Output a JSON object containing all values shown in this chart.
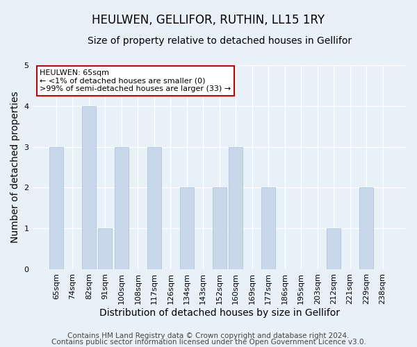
{
  "title": "HEULWEN, GELLIFOR, RUTHIN, LL15 1RY",
  "subtitle": "Size of property relative to detached houses in Gellifor",
  "xlabel": "Distribution of detached houses by size in Gellifor",
  "ylabel": "Number of detached properties",
  "categories": [
    "65sqm",
    "74sqm",
    "82sqm",
    "91sqm",
    "100sqm",
    "108sqm",
    "117sqm",
    "126sqm",
    "134sqm",
    "143sqm",
    "152sqm",
    "160sqm",
    "169sqm",
    "177sqm",
    "186sqm",
    "195sqm",
    "203sqm",
    "212sqm",
    "221sqm",
    "229sqm",
    "238sqm"
  ],
  "values": [
    3,
    0,
    4,
    1,
    3,
    0,
    3,
    0,
    2,
    0,
    2,
    3,
    0,
    2,
    0,
    0,
    0,
    1,
    0,
    2,
    0
  ],
  "bar_color": "#c8d8ea",
  "ylim": [
    0,
    5
  ],
  "yticks": [
    0,
    1,
    2,
    3,
    4,
    5
  ],
  "annotation_title": "HEULWEN: 65sqm",
  "annotation_line1": "← <1% of detached houses are smaller (0)",
  "annotation_line2": ">99% of semi-detached houses are larger (33) →",
  "annotation_box_facecolor": "#ffffff",
  "annotation_box_edgecolor": "#cc0000",
  "footer1": "Contains HM Land Registry data © Crown copyright and database right 2024.",
  "footer2": "Contains public sector information licensed under the Open Government Licence v3.0.",
  "title_fontsize": 12,
  "subtitle_fontsize": 10,
  "axis_label_fontsize": 10,
  "tick_fontsize": 8,
  "annotation_fontsize": 8,
  "footer_fontsize": 7.5,
  "grid_color": "#ffffff",
  "bg_color": "#e8f0f8"
}
